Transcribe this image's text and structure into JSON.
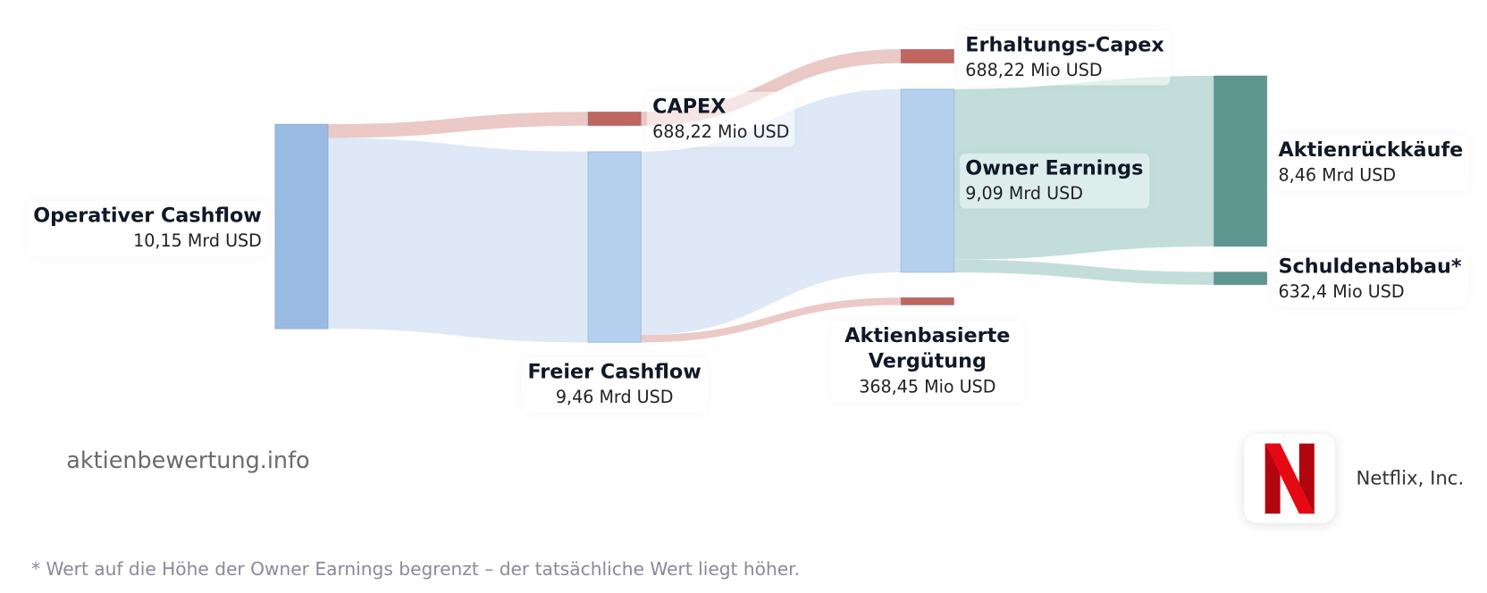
{
  "chart_data": {
    "type": "sankey",
    "nodes": [
      {
        "name": "Operativer Cashflow",
        "value": 10150,
        "value_label": "10,15 Mrd USD",
        "color": "#9ab9e3"
      },
      {
        "name": "CAPEX",
        "value": 688.22,
        "value_label": "688,22 Mio USD",
        "color": "#c0665e"
      },
      {
        "name": "Freier Cashflow",
        "value": 9460,
        "value_label": "9,46 Mrd USD",
        "color": "#b5cfee"
      },
      {
        "name": "Erhaltungs-Capex",
        "value": 688.22,
        "value_label": "688,22 Mio USD",
        "color": "#c0665e"
      },
      {
        "name": "Owner Earnings",
        "value": 9090,
        "value_label": "9,09 Mrd USD",
        "color": "#b5cfee"
      },
      {
        "name": "Aktienbasierte Vergütung",
        "value": 368.45,
        "value_label": "368,45 Mio USD",
        "color": "#c0665e"
      },
      {
        "name": "Aktienrückkäufe",
        "value": 8460,
        "value_label": "8,46 Mrd USD",
        "color": "#5e9790"
      },
      {
        "name": "Schuldenabbau*",
        "value": 632.4,
        "value_label": "632,4 Mio USD",
        "color": "#5e9790"
      }
    ],
    "links": [
      {
        "source": 0,
        "target": 1,
        "value": 688.22,
        "color": "#e8c3c0"
      },
      {
        "source": 0,
        "target": 2,
        "value": 9460,
        "color": "#dae5f5"
      },
      {
        "source": 1,
        "target": 3,
        "value": 688.22,
        "color": "#e8c3c0"
      },
      {
        "source": 2,
        "target": 4,
        "value": 9090,
        "color": "#dae5f5"
      },
      {
        "source": 2,
        "target": 5,
        "value": 368.45,
        "color": "#e8c3c0"
      },
      {
        "source": 4,
        "target": 6,
        "value": 8460,
        "color": "#bddad6"
      },
      {
        "source": 4,
        "target": 7,
        "value": 632.4,
        "color": "#bddad6"
      }
    ]
  },
  "watermark": "aktienbewertung.info",
  "company": "Netflix, Inc.",
  "footnote": "* Wert auf die Höhe der Owner Earnings begrenzt – der tatsächliche Wert liegt höher."
}
